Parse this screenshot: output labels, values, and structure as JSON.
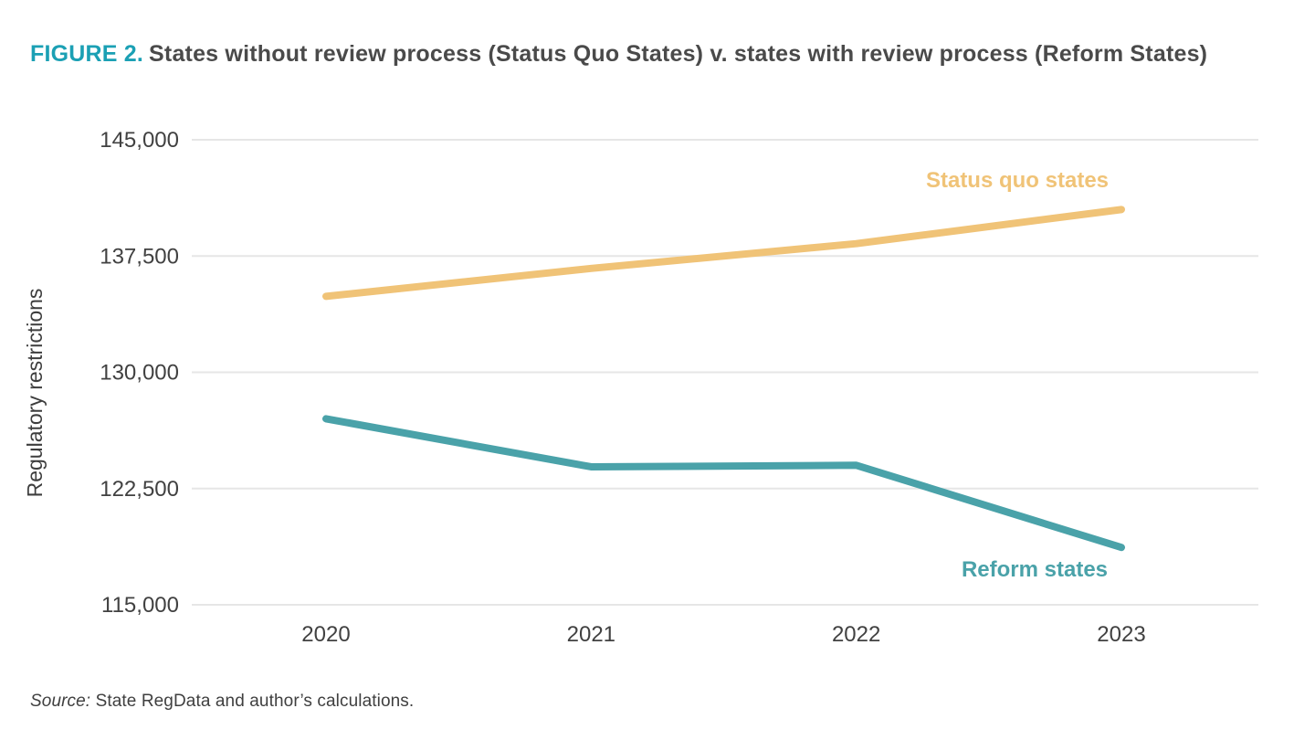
{
  "figure": {
    "label": "FIGURE 2.",
    "title": "States without review process (Status Quo States) v. states with review process (Reform States)"
  },
  "source": {
    "prefix": "Source:",
    "text": "State RegData and author’s calculations."
  },
  "colors": {
    "figure_label": "#1ba0b4",
    "title_text": "#4a4a4a",
    "status_quo": "#f0c377",
    "reform": "#4aa2a9",
    "gridline": "#e6e6e6",
    "tick_text": "#414141"
  },
  "chart_data": {
    "type": "line",
    "x": [
      2020,
      2021,
      2022,
      2023
    ],
    "xtick_labels": [
      "2020",
      "2021",
      "2022",
      "2023"
    ],
    "series": [
      {
        "name": "Status quo states",
        "color": "#f0c377",
        "values": [
          134900,
          136700,
          138300,
          140500
        ]
      },
      {
        "name": "Reform states",
        "color": "#4aa2a9",
        "values": [
          127000,
          123900,
          124000,
          118700
        ]
      }
    ],
    "ylabel": "Regulatory restrictions",
    "ylim": [
      115000,
      145000
    ],
    "yticks": [
      115000,
      122500,
      130000,
      137500,
      145000
    ],
    "ytick_labels": [
      "115,000",
      "122,500",
      "130,000",
      "137,500",
      "145,000"
    ],
    "grid": "horizontal-only",
    "legend_position": "inline-labels-near-lines"
  }
}
